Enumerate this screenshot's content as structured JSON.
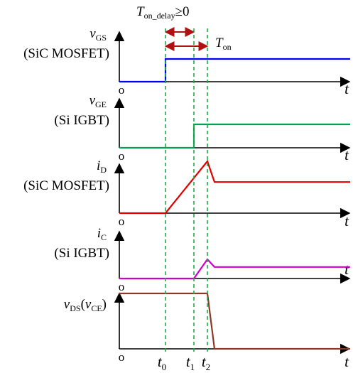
{
  "header": {
    "delay_symbol": "T",
    "delay_sub": "on_delay",
    "delay_rel": "≥0",
    "on_symbol": "T",
    "on_sub": "on"
  },
  "panels": [
    {
      "name": "vgs",
      "sym": "v",
      "sub": "GS",
      "extra": "",
      "device": "(SiC MOSFET)",
      "origin": "o",
      "axis_label": "t",
      "color": "#0000ee",
      "trace": [
        [
          0,
          0
        ],
        [
          0.3,
          0
        ],
        [
          0.3,
          1
        ],
        [
          1.0,
          1
        ]
      ]
    },
    {
      "name": "vge",
      "sym": "v",
      "sub": "GE",
      "extra": "",
      "device": "(Si IGBT)",
      "origin": "o",
      "axis_label": "t",
      "color": "#00a050",
      "trace": [
        [
          0,
          0
        ],
        [
          0.55,
          0
        ],
        [
          0.55,
          1
        ],
        [
          1.0,
          1
        ]
      ]
    },
    {
      "name": "id",
      "sym": "i",
      "sub": "D",
      "extra": "",
      "device": "(SiC MOSFET)",
      "origin": "o",
      "axis_label": "t",
      "color": "#e00000",
      "trace": [
        [
          0,
          0
        ],
        [
          0.3,
          0
        ],
        [
          0.66,
          1
        ],
        [
          0.72,
          0.6
        ],
        [
          1.0,
          0.6
        ]
      ]
    },
    {
      "name": "ic",
      "sym": "i",
      "sub": "C",
      "extra": "",
      "device": "(Si IGBT)",
      "origin": "o",
      "axis_label": "t",
      "color": "#cc00cc",
      "trace": [
        [
          0,
          0
        ],
        [
          0.55,
          0
        ],
        [
          0.66,
          1
        ],
        [
          0.72,
          0.6
        ],
        [
          1.0,
          0.6
        ]
      ]
    },
    {
      "name": "vds",
      "sym": "v",
      "sub": "DS",
      "extra": "(v",
      "extra_sub": "CE",
      "extra_close": ")",
      "device": "",
      "origin": "o",
      "axis_label": "t",
      "color": "#8b3a2a",
      "trace": [
        [
          0,
          1
        ],
        [
          0.66,
          1
        ],
        [
          0.72,
          0
        ],
        [
          1.0,
          0
        ]
      ]
    }
  ],
  "markers": [
    {
      "name": "t0",
      "sym": "t",
      "sub": "0"
    },
    {
      "name": "t1",
      "sym": "t",
      "sub": "1"
    },
    {
      "name": "t2",
      "sym": "t",
      "sub": "2"
    }
  ],
  "colors": {
    "axis": "#000000",
    "dashed": "#22aa44",
    "arrow": "#b01010"
  }
}
